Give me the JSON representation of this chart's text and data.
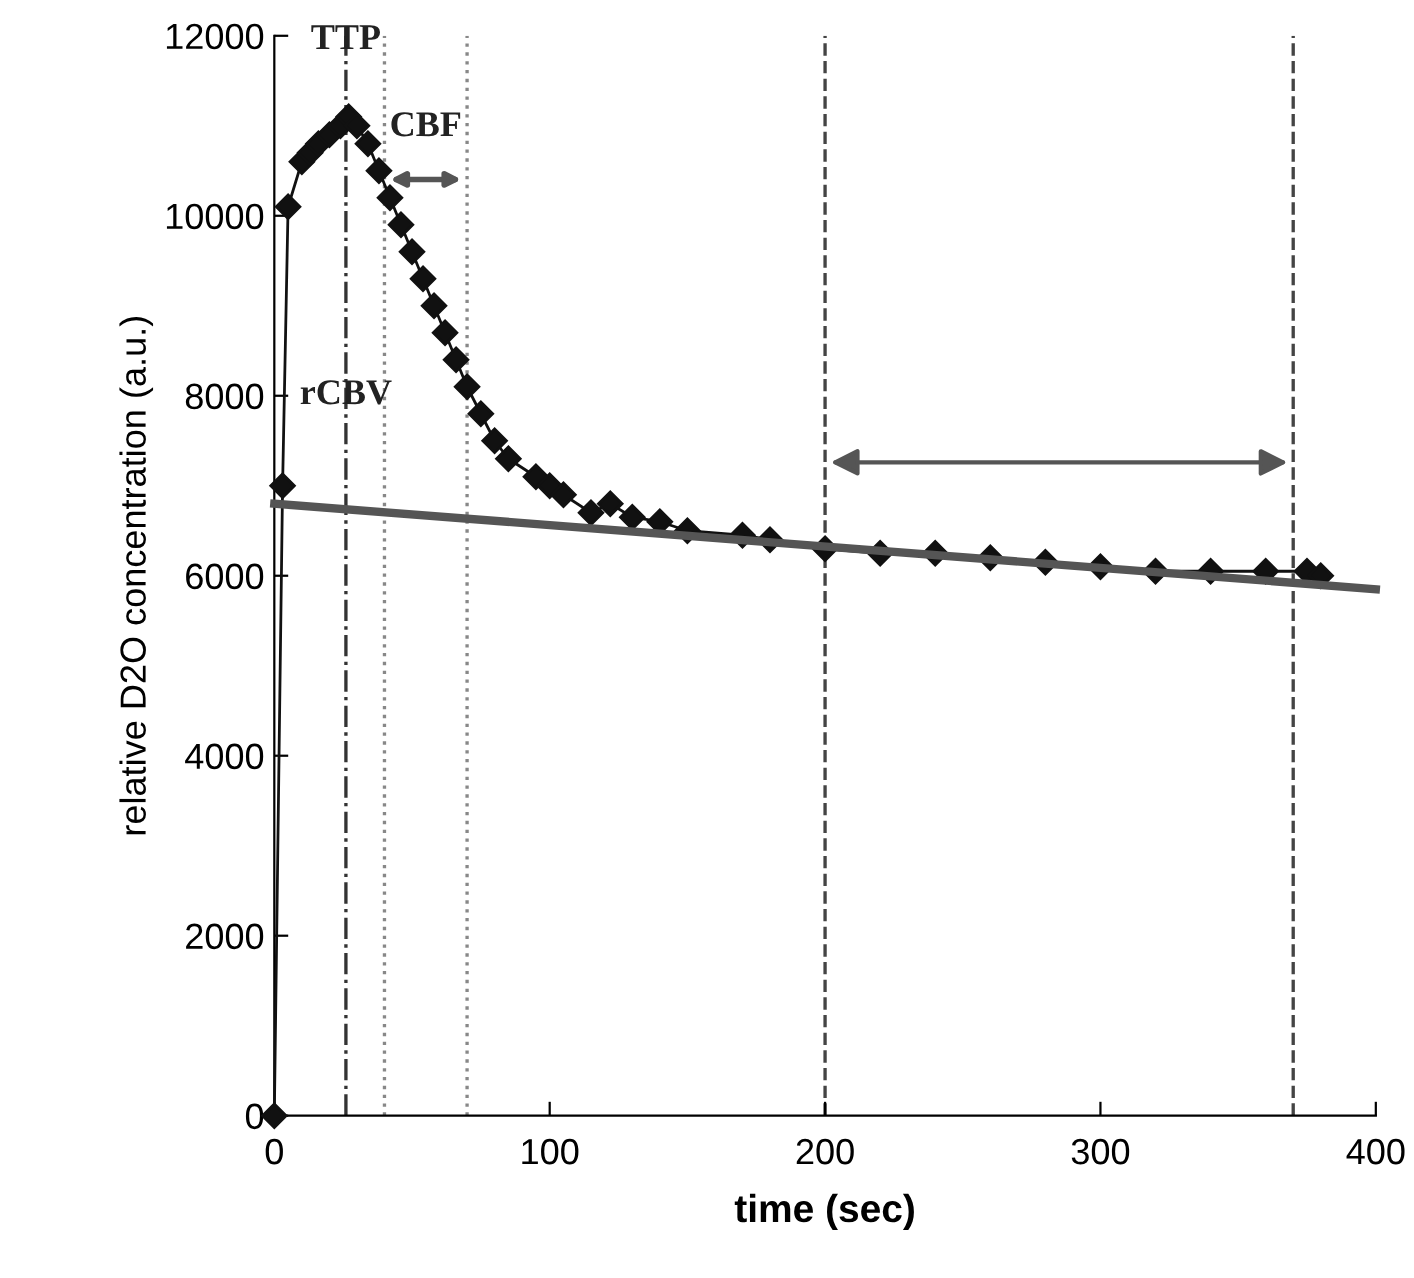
{
  "chart_data": {
    "type": "line",
    "xlabel": "time (sec)",
    "ylabel": "relative D2O concentration (a.u.)",
    "xlim": [
      0,
      400
    ],
    "xticks": [
      0,
      100,
      200,
      300,
      400
    ],
    "ylim": [
      0,
      12000
    ],
    "yticks": [
      0,
      2000,
      4000,
      6000,
      8000,
      10000,
      12000
    ],
    "grid": false,
    "legend": false,
    "series": [
      {
        "color": "#111111",
        "marker": "diamond",
        "line_style": "solid",
        "x": [
          0,
          3,
          5,
          10,
          13,
          16,
          20,
          24,
          27,
          30,
          34,
          38,
          42,
          46,
          50,
          54,
          58,
          62,
          66,
          70,
          75,
          80,
          85,
          95,
          100,
          105,
          115,
          122,
          130,
          140,
          150,
          170,
          180,
          200,
          220,
          240,
          260,
          280,
          300,
          320,
          340,
          360,
          375,
          380
        ],
        "values": [
          0,
          7000,
          10100,
          10600,
          10700,
          10800,
          10900,
          11000,
          11100,
          11000,
          10800,
          10500,
          10200,
          9900,
          9600,
          9300,
          9000,
          8700,
          8400,
          8100,
          7800,
          7500,
          7300,
          7100,
          7000,
          6900,
          6700,
          6800,
          6650,
          6600,
          6500,
          6450,
          6400,
          6300,
          6250,
          6250,
          6200,
          6150,
          6100,
          6050,
          6050,
          6050,
          6050,
          6000
        ]
      },
      {
        "color": "#555555",
        "marker": "none",
        "line_style": "solid",
        "x": [
          0,
          400
        ],
        "values": [
          6800,
          5850
        ]
      }
    ],
    "ref_lines": [
      {
        "axis": "x",
        "value": 26,
        "line_style": "dashdot",
        "color": "#333333"
      },
      {
        "axis": "x",
        "value": 40,
        "line_style": "dotted",
        "color": "#888888"
      },
      {
        "axis": "x",
        "value": 70,
        "line_style": "dotted",
        "color": "#888888"
      },
      {
        "axis": "x",
        "value": 200,
        "line_style": "dashed",
        "color": "#444444"
      },
      {
        "axis": "x",
        "value": 370,
        "line_style": "dashed",
        "color": "#444444"
      }
    ],
    "annotations": [
      {
        "text": "TTP",
        "x": 26,
        "y": 11950
      },
      "CBF",
      "rCBV"
    ]
  }
}
